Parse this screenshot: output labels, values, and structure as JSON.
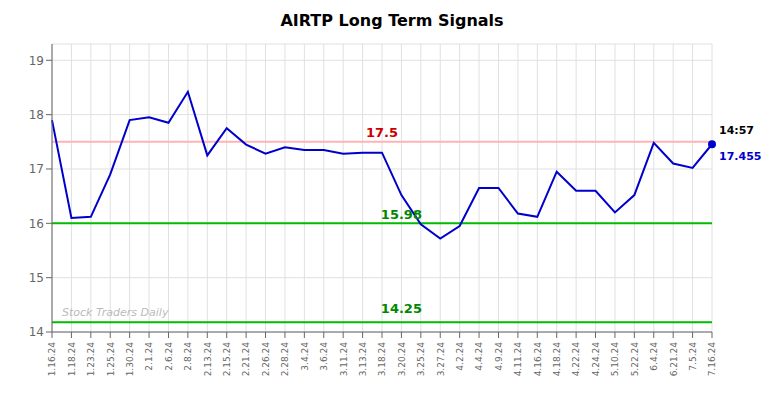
{
  "chart_data": {
    "type": "line",
    "title": "AIRTP Long Term Signals",
    "categories": [
      "1.16.24",
      "1.18.24",
      "1.23.24",
      "1.25.24",
      "1.30.24",
      "2.1.24",
      "2.6.24",
      "2.8.24",
      "2.13.24",
      "2.15.24",
      "2.21.24",
      "2.26.24",
      "2.28.24",
      "3.4.24",
      "3.6.24",
      "3.11.24",
      "3.13.24",
      "3.18.24",
      "3.20.24",
      "3.25.24",
      "3.27.24",
      "4.2.24",
      "4.4.24",
      "4.9.24",
      "4.11.24",
      "4.16.24",
      "4.18.24",
      "4.22.24",
      "4.24.24",
      "5.10.24",
      "5.22.24",
      "6.4.24",
      "6.21.24",
      "7.5.24",
      "7.16.24"
    ],
    "values": [
      17.9,
      16.1,
      16.12,
      16.9,
      17.9,
      17.95,
      17.85,
      18.42,
      17.25,
      17.75,
      17.45,
      17.28,
      17.4,
      17.35,
      17.35,
      17.28,
      17.3,
      17.3,
      16.52,
      15.98,
      15.72,
      15.95,
      16.65,
      16.65,
      16.18,
      16.12,
      16.95,
      16.6,
      16.6,
      16.2,
      16.52,
      17.48,
      17.1,
      17.02,
      17.455
    ],
    "color": "#0000cc",
    "ylim": [
      14.0,
      19.3
    ],
    "yticks": [
      14,
      15,
      16,
      17,
      18,
      19
    ],
    "grid": true,
    "reference_lines": [
      {
        "y": 17.5,
        "color": "#ffb3b3"
      },
      {
        "y": 16.0,
        "color": "#00bb00"
      },
      {
        "y": 14.18,
        "color": "#00bb00"
      }
    ],
    "annotations": [
      {
        "text": "17.5",
        "x": "3.18.24",
        "y": 17.5,
        "color": "#cc0000"
      },
      {
        "text": "15.98",
        "x": "3.20.24",
        "y": 15.98,
        "color": "#008800"
      },
      {
        "text": "14.25",
        "x": "3.20.24",
        "y": 14.25,
        "color": "#008800"
      },
      {
        "text": "14:57",
        "x": "7.16.24",
        "y": 17.455,
        "color": "#000000"
      },
      {
        "text": "17.455",
        "x": "7.16.24",
        "y": 17.455,
        "color": "#0000cc"
      },
      {
        "text": "Stock Traders Daily",
        "x": "1.16.24",
        "y": 14.22,
        "color": "#bbbbbb"
      }
    ]
  }
}
